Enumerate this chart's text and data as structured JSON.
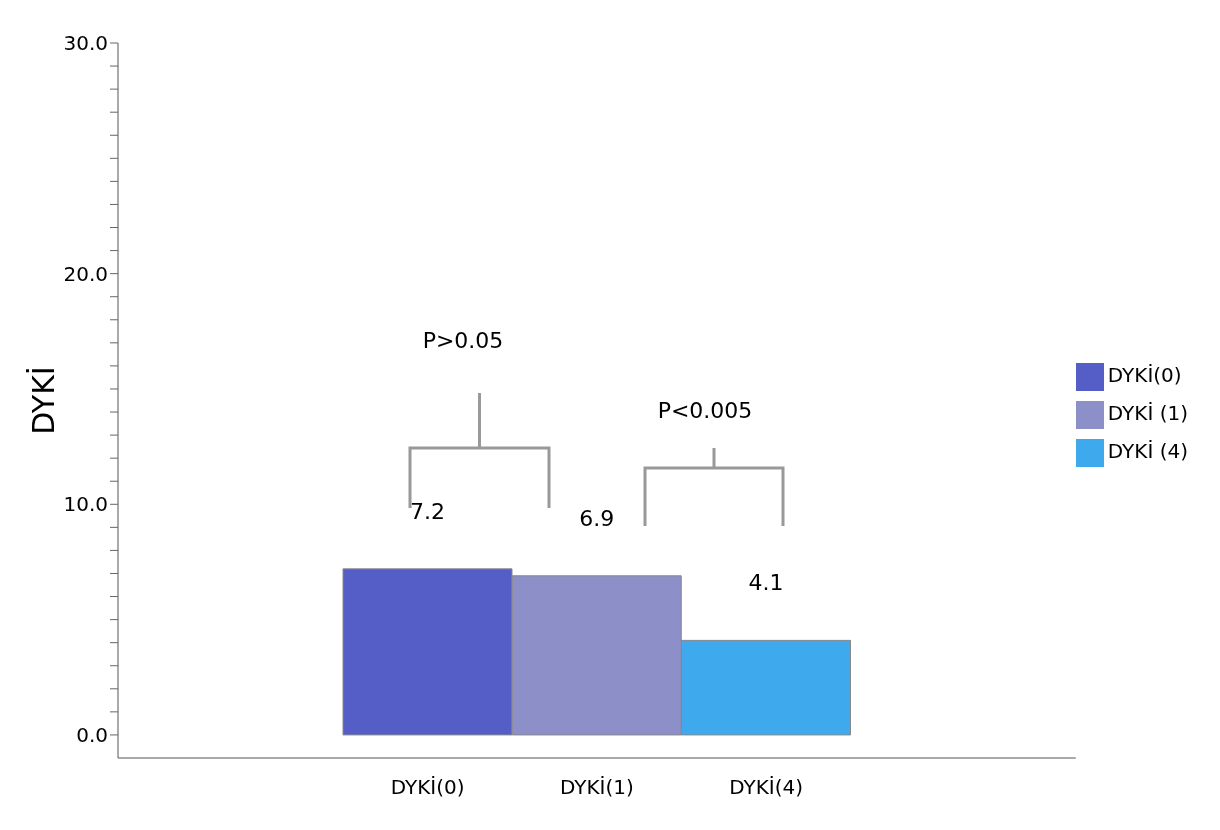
{
  "chart_data": {
    "type": "bar",
    "ylabel": "DYKİ",
    "categories": [
      "DYKİ(0)",
      "DYKİ(1)",
      "DYKİ(4)"
    ],
    "series": [
      {
        "name": "DYKİ(0)",
        "color": "#545ec6",
        "values": [
          7.2,
          null,
          null
        ]
      },
      {
        "name": "DYKİ (1)",
        "color": "#8c8fc8",
        "values": [
          null,
          6.9,
          null
        ]
      },
      {
        "name": "DYKİ (4)",
        "color": "#3fa9ee",
        "values": [
          null,
          null,
          4.1
        ]
      }
    ],
    "stacked": true,
    "data_labels": true,
    "legend": "right",
    "grid": false,
    "ylim": [
      -1,
      30
    ],
    "yticks": [
      {
        "value": 0,
        "label": "0.0"
      },
      {
        "value": 1,
        "label": null
      },
      {
        "value": 2,
        "label": null
      },
      {
        "value": 3,
        "label": null
      },
      {
        "value": 4,
        "label": null
      },
      {
        "value": 5,
        "label": null
      },
      {
        "value": 6,
        "label": null
      },
      {
        "value": 7,
        "label": null
      },
      {
        "value": 8,
        "label": null
      },
      {
        "value": 9,
        "label": null
      },
      {
        "value": 10,
        "label": "10.0"
      },
      {
        "value": 11,
        "label": null
      },
      {
        "value": 12,
        "label": null
      },
      {
        "value": 13,
        "label": null
      },
      {
        "value": 14,
        "label": null
      },
      {
        "value": 15,
        "label": null
      },
      {
        "value": 16,
        "label": null
      },
      {
        "value": 17,
        "label": null
      },
      {
        "value": 18,
        "label": null
      },
      {
        "value": 19,
        "label": null
      },
      {
        "value": 20,
        "label": "20.0"
      },
      {
        "value": 21,
        "label": null
      },
      {
        "value": 22,
        "label": null
      },
      {
        "value": 23,
        "label": null
      },
      {
        "value": 24,
        "label": null
      },
      {
        "value": 25,
        "label": null
      },
      {
        "value": 26,
        "label": null
      },
      {
        "value": 27,
        "label": null
      },
      {
        "value": 28,
        "label": null
      },
      {
        "value": 29,
        "label": null
      },
      {
        "value": 30,
        "label": "30.0"
      }
    ],
    "annotations": [
      "P>0.05",
      "P<0.005"
    ]
  }
}
